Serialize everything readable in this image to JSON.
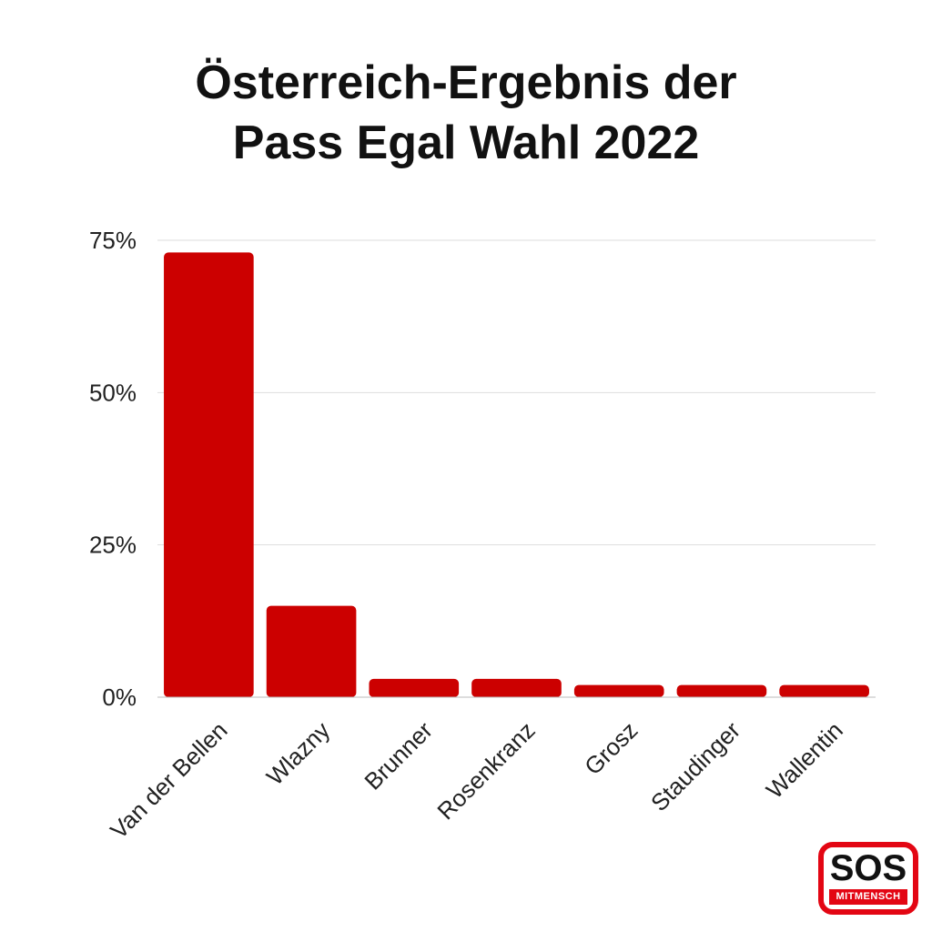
{
  "title": {
    "line1": "Österreich-Ergebnis der",
    "line2": "Pass Egal Wahl 2022"
  },
  "colors": {
    "bar": "#cc0000",
    "grid": "#dddddd",
    "logo_red": "#e30613"
  },
  "logo": {
    "text": "SOS",
    "subtext": "MITMENSCH"
  },
  "chart_data": {
    "type": "bar",
    "title": "Österreich-Ergebnis der Pass Egal Wahl 2022",
    "xlabel": "",
    "ylabel": "",
    "categories": [
      "Van der Bellen",
      "Wlazny",
      "Brunner",
      "Rosenkranz",
      "Grosz",
      "Staudinger",
      "Wallentin"
    ],
    "values": [
      73,
      15,
      3,
      3,
      2,
      2,
      2
    ],
    "value_unit": "%",
    "ylim": [
      0,
      75
    ],
    "yticks": [
      0,
      25,
      50,
      75
    ],
    "ytick_labels": [
      "0%",
      "25%",
      "50%",
      "75%"
    ],
    "grid": true,
    "legend": "none"
  }
}
